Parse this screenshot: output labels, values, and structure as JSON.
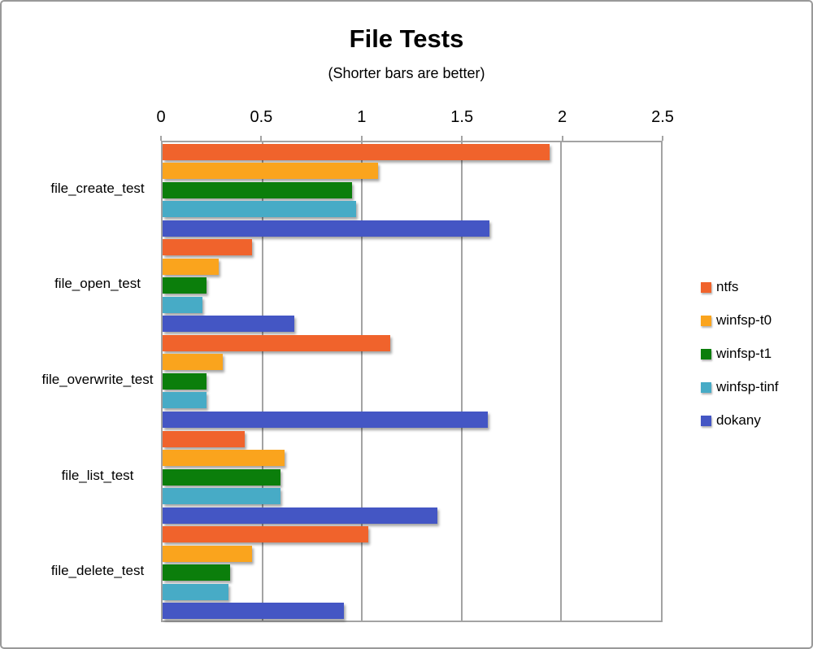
{
  "chart_data": {
    "type": "bar",
    "orientation": "horizontal",
    "title": "File Tests",
    "subtitle": "(Shorter bars are better)",
    "categories": [
      "file_create_test",
      "file_open_test",
      "file_overwrite_test",
      "file_list_test",
      "file_delete_test"
    ],
    "series": [
      {
        "name": "ntfs",
        "color": "#F0632C",
        "values": [
          1.94,
          0.45,
          1.14,
          0.41,
          1.03
        ]
      },
      {
        "name": "winfsp-t0",
        "color": "#FAA41D",
        "values": [
          1.08,
          0.28,
          0.3,
          0.61,
          0.45
        ]
      },
      {
        "name": "winfsp-t1",
        "color": "#0B7E0B",
        "values": [
          0.95,
          0.22,
          0.22,
          0.59,
          0.34
        ]
      },
      {
        "name": "winfsp-tinf",
        "color": "#47ABC6",
        "values": [
          0.97,
          0.2,
          0.22,
          0.59,
          0.33
        ]
      },
      {
        "name": "dokany",
        "color": "#4456C4",
        "values": [
          1.64,
          0.66,
          1.63,
          1.38,
          0.91
        ]
      }
    ],
    "xlim": [
      0,
      2.5
    ],
    "tick_step": 0.5,
    "tick_labels": [
      "0",
      "0.5",
      "1",
      "1.5",
      "2",
      "2.5"
    ],
    "grid": true,
    "legend_position": "right",
    "axis_color": "#a3a3a3"
  }
}
